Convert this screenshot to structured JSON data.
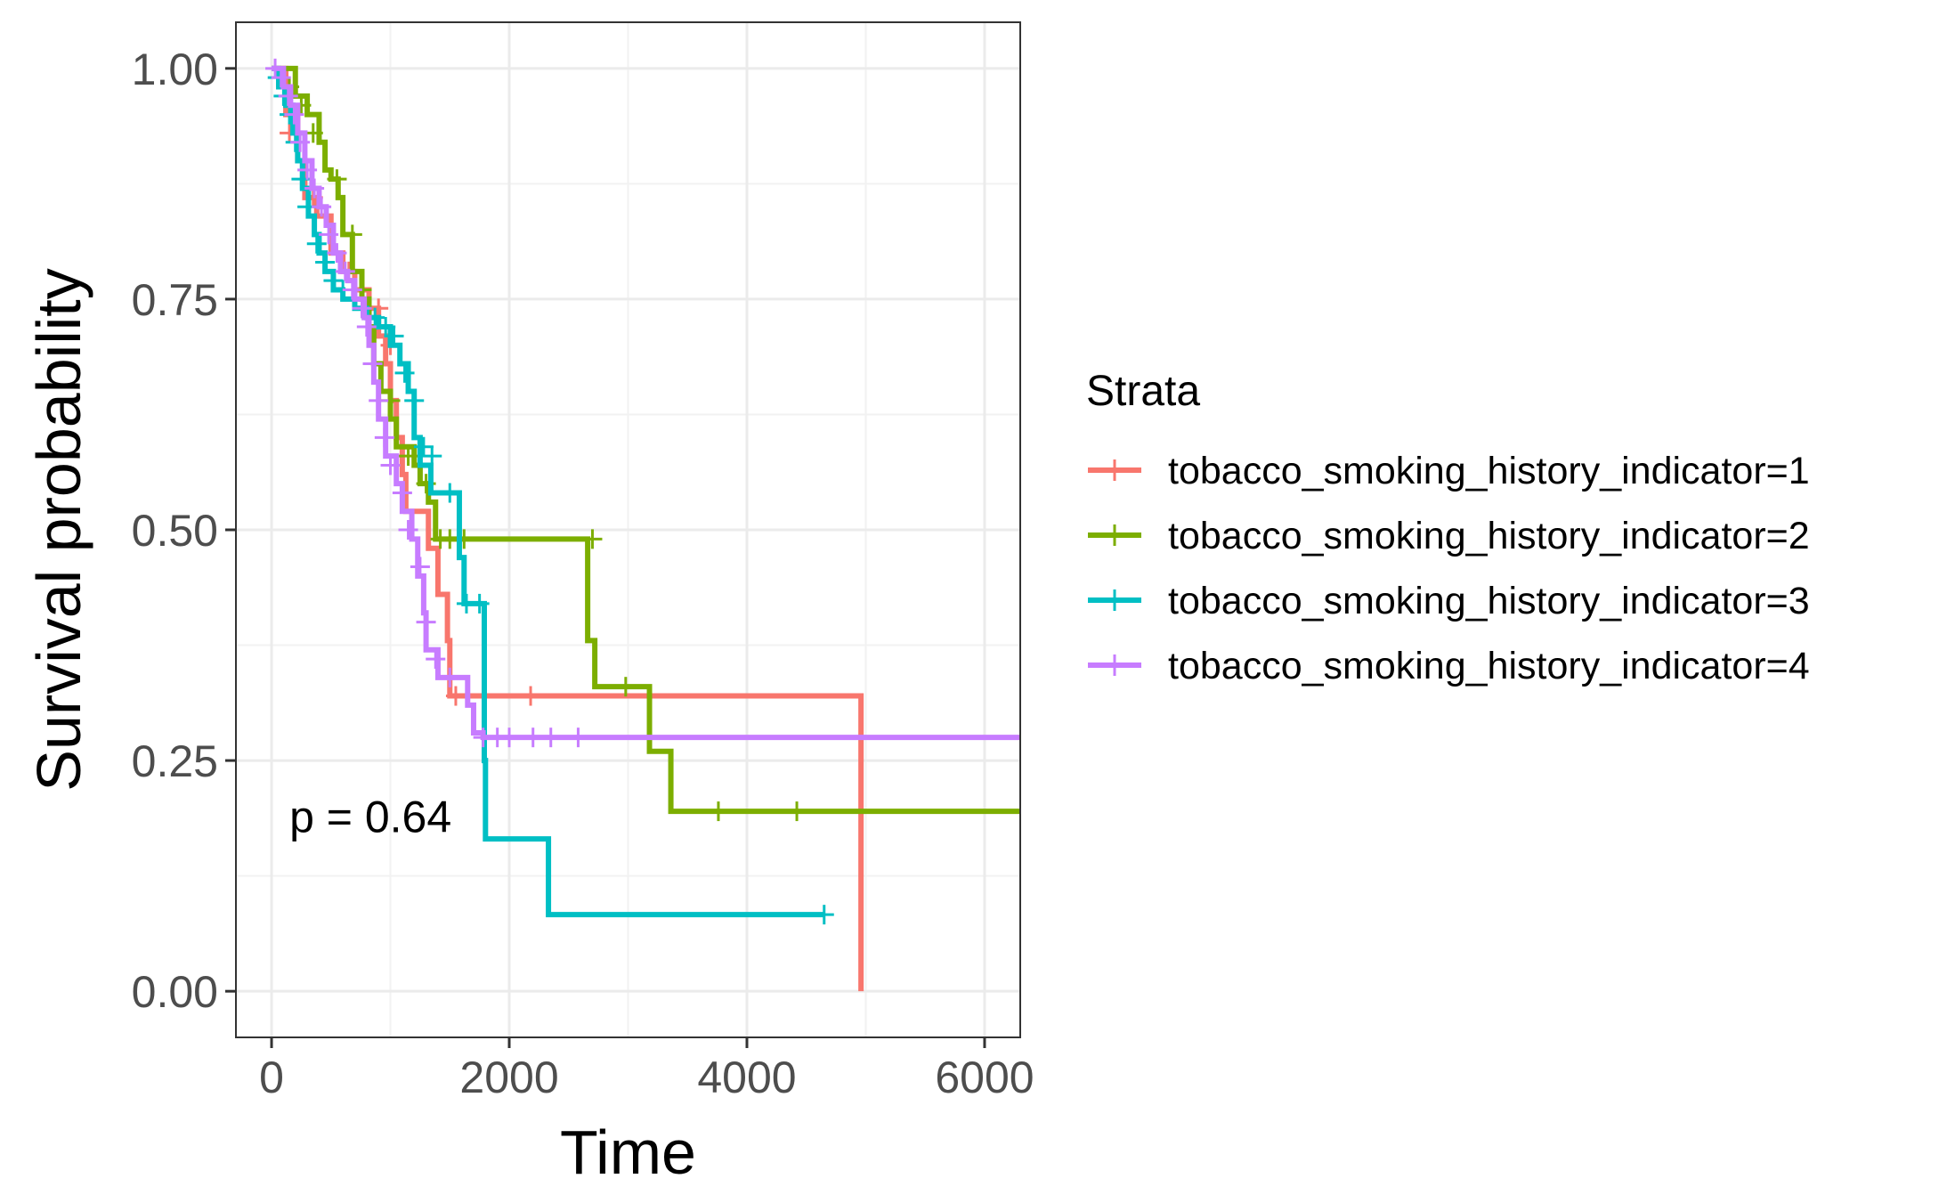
{
  "chart_data": {
    "type": "line",
    "subtype": "kaplan-meier",
    "title": "",
    "xlabel": "Time",
    "ylabel": "Survival probability",
    "xlim": [
      -300,
      6300
    ],
    "ylim": [
      -0.05,
      1.05
    ],
    "xticks": [
      0,
      2000,
      4000,
      6000
    ],
    "xtick_labels": [
      "0",
      "2000",
      "4000",
      "6000"
    ],
    "yticks": [
      0,
      0.25,
      0.5,
      0.75,
      1.0
    ],
    "ytick_labels": [
      "0.00",
      "0.25",
      "0.50",
      "0.75",
      "1.00"
    ],
    "grid": true,
    "legend": {
      "title": "Strata",
      "position": "right"
    },
    "annotation": "p = 0.64",
    "annotation_at": {
      "x": 150,
      "y": 0.19
    },
    "series": [
      {
        "name": "tobacco_smoking_history_indicator=1",
        "color": "#F8766D",
        "steps": [
          [
            0,
            1.0
          ],
          [
            120,
            0.95
          ],
          [
            220,
            0.9
          ],
          [
            280,
            0.86
          ],
          [
            380,
            0.84
          ],
          [
            500,
            0.8
          ],
          [
            600,
            0.78
          ],
          [
            700,
            0.76
          ],
          [
            820,
            0.74
          ],
          [
            900,
            0.71
          ],
          [
            960,
            0.68
          ],
          [
            1000,
            0.64
          ],
          [
            1050,
            0.6
          ],
          [
            1100,
            0.56
          ],
          [
            1130,
            0.52
          ],
          [
            1270,
            0.52
          ],
          [
            1320,
            0.48
          ],
          [
            1400,
            0.43
          ],
          [
            1480,
            0.38
          ],
          [
            1500,
            0.32
          ],
          [
            4960,
            0.32
          ],
          [
            4960,
            0.0
          ]
        ],
        "censors": [
          [
            150,
            0.93
          ],
          [
            350,
            0.86
          ],
          [
            650,
            0.78
          ],
          [
            900,
            0.74
          ],
          [
            1000,
            0.7
          ],
          [
            1550,
            0.32
          ],
          [
            2180,
            0.32
          ]
        ]
      },
      {
        "name": "tobacco_smoking_history_indicator=2",
        "color": "#7CAE00",
        "steps": [
          [
            0,
            1.0
          ],
          [
            200,
            0.97
          ],
          [
            300,
            0.95
          ],
          [
            400,
            0.92
          ],
          [
            450,
            0.89
          ],
          [
            500,
            0.88
          ],
          [
            560,
            0.86
          ],
          [
            600,
            0.82
          ],
          [
            680,
            0.78
          ],
          [
            760,
            0.75
          ],
          [
            820,
            0.72
          ],
          [
            860,
            0.68
          ],
          [
            920,
            0.65
          ],
          [
            1000,
            0.62
          ],
          [
            1050,
            0.59
          ],
          [
            1200,
            0.57
          ],
          [
            1250,
            0.55
          ],
          [
            1320,
            0.53
          ],
          [
            1380,
            0.49
          ],
          [
            2630,
            0.49
          ],
          [
            2660,
            0.38
          ],
          [
            2720,
            0.33
          ],
          [
            3180,
            0.33
          ],
          [
            3180,
            0.26
          ],
          [
            3360,
            0.26
          ],
          [
            3360,
            0.195
          ],
          [
            6300,
            0.195
          ]
        ],
        "censors": [
          [
            150,
            0.98
          ],
          [
            250,
            0.96
          ],
          [
            350,
            0.93
          ],
          [
            550,
            0.88
          ],
          [
            680,
            0.82
          ],
          [
            760,
            0.76
          ],
          [
            1000,
            0.64
          ],
          [
            1150,
            0.58
          ],
          [
            1300,
            0.55
          ],
          [
            1420,
            0.49
          ],
          [
            1500,
            0.49
          ],
          [
            1620,
            0.49
          ],
          [
            2700,
            0.49
          ],
          [
            2980,
            0.33
          ],
          [
            3760,
            0.195
          ],
          [
            4420,
            0.195
          ]
        ]
      },
      {
        "name": "tobacco_smoking_history_indicator=3",
        "color": "#00BFC4",
        "steps": [
          [
            0,
            1.0
          ],
          [
            60,
            0.98
          ],
          [
            120,
            0.96
          ],
          [
            180,
            0.93
          ],
          [
            220,
            0.9
          ],
          [
            260,
            0.87
          ],
          [
            310,
            0.84
          ],
          [
            360,
            0.82
          ],
          [
            400,
            0.8
          ],
          [
            450,
            0.78
          ],
          [
            520,
            0.76
          ],
          [
            600,
            0.75
          ],
          [
            700,
            0.74
          ],
          [
            800,
            0.73
          ],
          [
            900,
            0.72
          ],
          [
            1000,
            0.7
          ],
          [
            1080,
            0.68
          ],
          [
            1150,
            0.65
          ],
          [
            1200,
            0.6
          ],
          [
            1250,
            0.57
          ],
          [
            1340,
            0.54
          ],
          [
            1560,
            0.54
          ],
          [
            1580,
            0.47
          ],
          [
            1620,
            0.42
          ],
          [
            1760,
            0.42
          ],
          [
            1790,
            0.25
          ],
          [
            1800,
            0.165
          ],
          [
            2330,
            0.165
          ],
          [
            2330,
            0.083
          ],
          [
            4650,
            0.083
          ]
        ],
        "censors": [
          [
            50,
            0.99
          ],
          [
            100,
            0.97
          ],
          [
            150,
            0.95
          ],
          [
            200,
            0.92
          ],
          [
            250,
            0.88
          ],
          [
            300,
            0.85
          ],
          [
            380,
            0.81
          ],
          [
            450,
            0.79
          ],
          [
            520,
            0.77
          ],
          [
            600,
            0.76
          ],
          [
            700,
            0.75
          ],
          [
            760,
            0.74
          ],
          [
            870,
            0.73
          ],
          [
            960,
            0.72
          ],
          [
            1030,
            0.71
          ],
          [
            1120,
            0.67
          ],
          [
            1200,
            0.64
          ],
          [
            1280,
            0.59
          ],
          [
            1350,
            0.58
          ],
          [
            1500,
            0.54
          ],
          [
            1640,
            0.42
          ],
          [
            1750,
            0.42
          ],
          [
            4650,
            0.083
          ]
        ]
      },
      {
        "name": "tobacco_smoking_history_indicator=4",
        "color": "#C77CFF",
        "steps": [
          [
            0,
            1.0
          ],
          [
            100,
            0.98
          ],
          [
            160,
            0.96
          ],
          [
            220,
            0.93
          ],
          [
            280,
            0.9
          ],
          [
            340,
            0.87
          ],
          [
            400,
            0.85
          ],
          [
            460,
            0.83
          ],
          [
            520,
            0.8
          ],
          [
            580,
            0.78
          ],
          [
            640,
            0.77
          ],
          [
            700,
            0.75
          ],
          [
            780,
            0.73
          ],
          [
            820,
            0.7
          ],
          [
            860,
            0.66
          ],
          [
            900,
            0.62
          ],
          [
            960,
            0.58
          ],
          [
            1050,
            0.55
          ],
          [
            1100,
            0.52
          ],
          [
            1180,
            0.49
          ],
          [
            1230,
            0.45
          ],
          [
            1280,
            0.41
          ],
          [
            1300,
            0.37
          ],
          [
            1380,
            0.37
          ],
          [
            1400,
            0.34
          ],
          [
            1600,
            0.34
          ],
          [
            1650,
            0.31
          ],
          [
            1700,
            0.28
          ],
          [
            1780,
            0.275
          ],
          [
            6300,
            0.275
          ]
        ],
        "censors": [
          [
            30,
            1.0
          ],
          [
            80,
            0.99
          ],
          [
            140,
            0.97
          ],
          [
            190,
            0.95
          ],
          [
            240,
            0.92
          ],
          [
            300,
            0.89
          ],
          [
            360,
            0.87
          ],
          [
            420,
            0.85
          ],
          [
            480,
            0.82
          ],
          [
            550,
            0.8
          ],
          [
            620,
            0.78
          ],
          [
            680,
            0.76
          ],
          [
            760,
            0.74
          ],
          [
            800,
            0.72
          ],
          [
            850,
            0.68
          ],
          [
            900,
            0.64
          ],
          [
            950,
            0.6
          ],
          [
            1000,
            0.57
          ],
          [
            1100,
            0.54
          ],
          [
            1150,
            0.5
          ],
          [
            1250,
            0.46
          ],
          [
            1300,
            0.4
          ],
          [
            1380,
            0.36
          ],
          [
            1500,
            0.34
          ],
          [
            1780,
            0.275
          ],
          [
            1900,
            0.275
          ],
          [
            2000,
            0.275
          ],
          [
            2200,
            0.275
          ],
          [
            2350,
            0.275
          ],
          [
            2580,
            0.275
          ]
        ]
      }
    ]
  }
}
